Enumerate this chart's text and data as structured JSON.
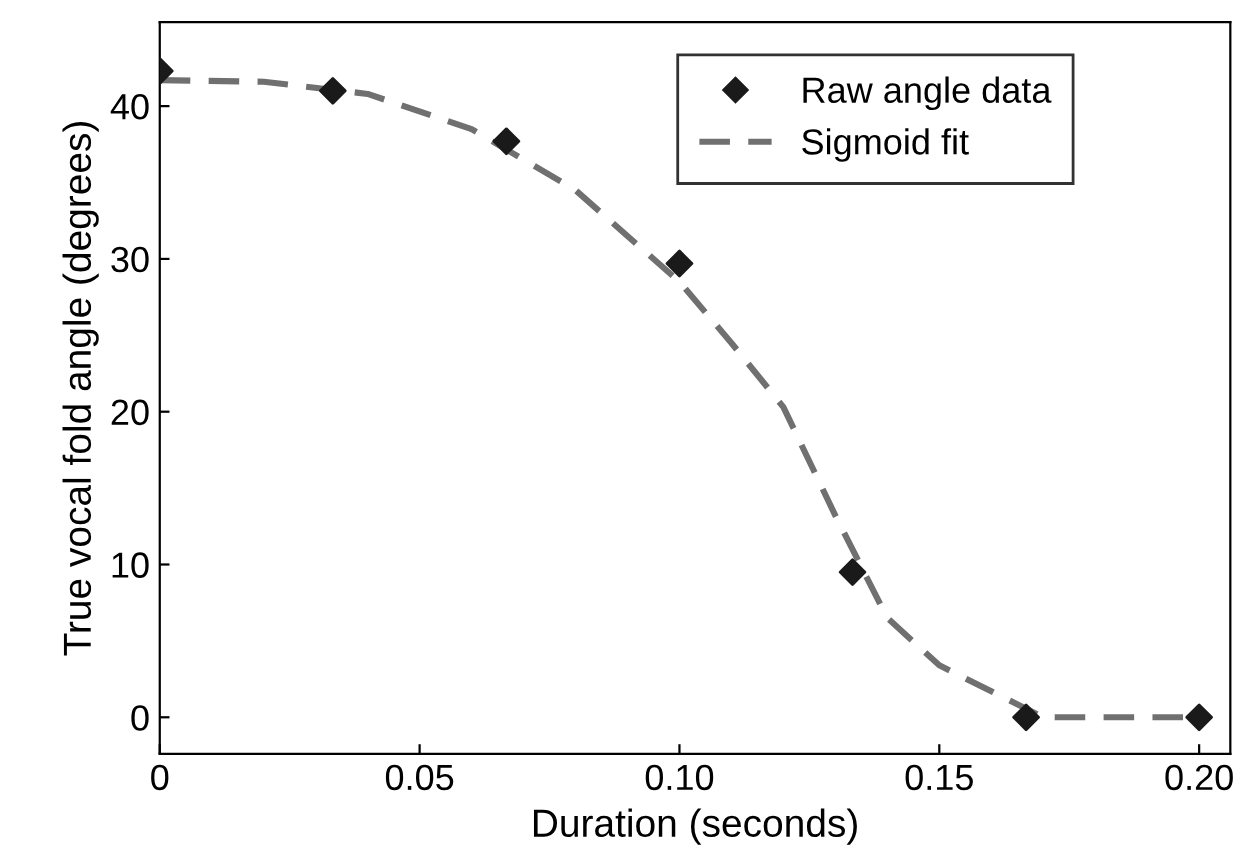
{
  "chart_data": {
    "type": "scatter",
    "xlabel": "Duration (seconds)",
    "ylabel": "True vocal fold angle (degrees)",
    "xlim": [
      0,
      0.206
    ],
    "ylim": [
      -2.4,
      45.5
    ],
    "xticks": [
      0,
      0.05,
      {
        "value": 0.1,
        "label": "0.10"
      },
      0.15,
      {
        "value": 0.2,
        "label": "0.20"
      }
    ],
    "yticks": [
      0,
      10,
      20,
      30,
      40
    ],
    "grid": false,
    "legend": "top right",
    "series": [
      {
        "name": "Raw angle data",
        "marker": "diamond",
        "color": "#1a1a1a",
        "x": [
          0,
          0.0333,
          0.0667,
          0.1,
          0.1333,
          0.1667,
          0.2
        ],
        "values": [
          42.3,
          41.0,
          37.7,
          29.7,
          9.5,
          0,
          0
        ]
      },
      {
        "name": "Sigmoid fit",
        "type": "line",
        "line_style": "dashed",
        "color": "#707070",
        "x": [
          0,
          0.02,
          0.04,
          0.06,
          0.08,
          0.1,
          0.11,
          0.12,
          0.13,
          0.14,
          0.15,
          0.16,
          0.17,
          0.2
        ],
        "values": [
          41.7,
          41.6,
          40.8,
          38.5,
          34.5,
          28.5,
          24.5,
          20.3,
          13.2,
          6.5,
          3.4,
          1.7,
          0,
          0
        ]
      }
    ]
  }
}
